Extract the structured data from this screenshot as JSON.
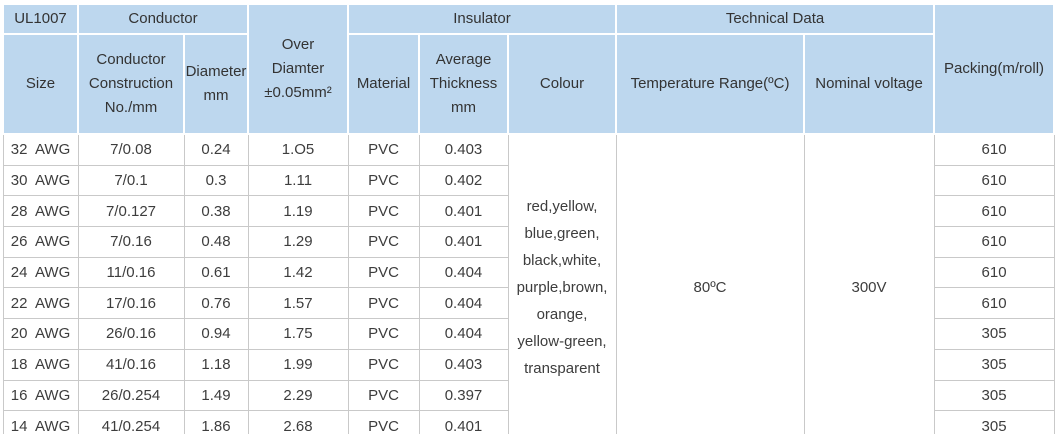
{
  "header": {
    "ul1007": "UL1007",
    "groups": {
      "conductor": "Conductor",
      "insulator": "Insulator",
      "technical_data": "Technical Data"
    },
    "columns": {
      "size": "Size",
      "construction": "Conductor\nConstruction\nNo./mm",
      "diameter": "Diameter\nmm",
      "over_diameter": "Over\nDiamter\n±0.05mm²",
      "material": "Material",
      "thickness": "Average\nThickness\nmm",
      "colour": "Colour",
      "temperature": "Temperature Range(ºC)",
      "voltage": "Nominal voltage",
      "packing": "Packing(m/roll)"
    }
  },
  "merged": {
    "colour": "red,yellow,\nblue,green,\nblack,white,\npurple,brown,\norange,\nyellow-green,\ntransparent",
    "temperature": "80ºC",
    "voltage": "300V"
  },
  "rows": [
    {
      "size": "32  AWG",
      "construction": "7/0.08",
      "diameter": "0.24",
      "over_diameter": "1.O5",
      "material": "PVC",
      "thickness": "0.403",
      "packing": "610"
    },
    {
      "size": "30  AWG",
      "construction": "7/0.1",
      "diameter": "0.3",
      "over_diameter": "1.11",
      "material": "PVC",
      "thickness": "0.402",
      "packing": "610"
    },
    {
      "size": "28  AWG",
      "construction": "7/0.127",
      "diameter": "0.38",
      "over_diameter": "1.19",
      "material": "PVC",
      "thickness": "0.401",
      "packing": "610"
    },
    {
      "size": "26  AWG",
      "construction": "7/0.16",
      "diameter": "0.48",
      "over_diameter": "1.29",
      "material": "PVC",
      "thickness": "0.401",
      "packing": "610"
    },
    {
      "size": "24  AWG",
      "construction": "11/0.16",
      "diameter": "0.61",
      "over_diameter": "1.42",
      "material": "PVC",
      "thickness": "0.404",
      "packing": "610"
    },
    {
      "size": "22  AWG",
      "construction": "17/0.16",
      "diameter": "0.76",
      "over_diameter": "1.57",
      "material": "PVC",
      "thickness": "0.404",
      "packing": "610"
    },
    {
      "size": "20  AWG",
      "construction": "26/0.16",
      "diameter": "0.94",
      "over_diameter": "1.75",
      "material": "PVC",
      "thickness": "0.404",
      "packing": "305"
    },
    {
      "size": "18  AWG",
      "construction": "41/0.16",
      "diameter": "1.18",
      "over_diameter": "1.99",
      "material": "PVC",
      "thickness": "0.403",
      "packing": "305"
    },
    {
      "size": "16  AWG",
      "construction": "26/0.254",
      "diameter": "1.49",
      "over_diameter": "2.29",
      "material": "PVC",
      "thickness": "0.397",
      "packing": "305"
    },
    {
      "size": "14  AWG",
      "construction": "41/0.254",
      "diameter": "1.86",
      "over_diameter": "2.68",
      "material": "PVC",
      "thickness": "0.401",
      "packing": "305"
    }
  ],
  "colors": {
    "header_bg": "#bdd7ee",
    "header_text": "#333333",
    "body_text": "#3d3d3d",
    "grid": "#c9c9c9"
  }
}
